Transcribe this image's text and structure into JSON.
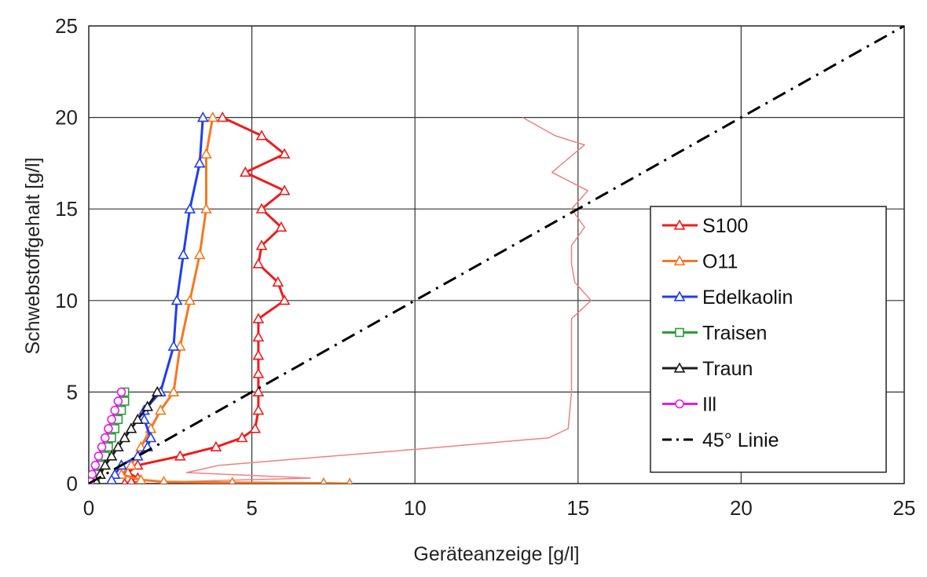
{
  "chart_data": {
    "type": "line",
    "xlabel": "Geräteanzeige [g/l]",
    "ylabel": "Schwebstoffgehalt [g/l]",
    "xlim": [
      0,
      25
    ],
    "ylim": [
      0,
      25
    ],
    "xticks": [
      "0",
      "5",
      "10",
      "15",
      "20",
      "25"
    ],
    "yticks": [
      "0",
      "5",
      "10",
      "15",
      "20",
      "25"
    ],
    "grid": true,
    "legend_position": "right",
    "series": [
      {
        "name": "S100",
        "color": "#ee1c1c",
        "marker": "triangle",
        "points": [
          [
            4.1,
            20
          ],
          [
            5.3,
            19
          ],
          [
            6.0,
            18
          ],
          [
            4.8,
            17
          ],
          [
            6.0,
            16
          ],
          [
            5.3,
            15
          ],
          [
            5.9,
            14
          ],
          [
            5.3,
            13
          ],
          [
            5.2,
            12
          ],
          [
            5.8,
            11
          ],
          [
            6.0,
            10
          ],
          [
            5.2,
            9
          ],
          [
            5.2,
            8
          ],
          [
            5.2,
            7
          ],
          [
            5.2,
            6
          ],
          [
            5.2,
            5
          ],
          [
            5.2,
            4
          ],
          [
            5.1,
            3
          ],
          [
            4.7,
            2.5
          ],
          [
            3.9,
            2
          ],
          [
            2.8,
            1.5
          ],
          [
            1.5,
            1.0
          ],
          [
            1.2,
            0.6
          ],
          [
            1.5,
            0.3
          ],
          [
            1.3,
            0.1
          ],
          [
            1.1,
            0
          ]
        ]
      },
      {
        "name": "",
        "color": "#f08080",
        "marker": "none",
        "points": [
          [
            13.3,
            20
          ],
          [
            14.3,
            19
          ],
          [
            15.2,
            18.5
          ],
          [
            14.2,
            17
          ],
          [
            15.3,
            16
          ],
          [
            14.8,
            15
          ],
          [
            15.2,
            14
          ],
          [
            14.8,
            13
          ],
          [
            14.8,
            12
          ],
          [
            14.9,
            11
          ],
          [
            15.4,
            10
          ],
          [
            14.8,
            9
          ],
          [
            14.8,
            7
          ],
          [
            14.8,
            5
          ],
          [
            14.7,
            3
          ],
          [
            14.1,
            2.5
          ],
          [
            10.2,
            1.9
          ],
          [
            4.0,
            1.0
          ],
          [
            3.0,
            0.6
          ],
          [
            6.8,
            0.3
          ],
          [
            2.5,
            0.1
          ]
        ]
      },
      {
        "name": "O11",
        "color": "#f5781e",
        "marker": "triangle",
        "points": [
          [
            3.8,
            20
          ],
          [
            3.6,
            18
          ],
          [
            3.6,
            15
          ],
          [
            3.4,
            12.5
          ],
          [
            3.1,
            10
          ],
          [
            2.8,
            7.5
          ],
          [
            2.6,
            5
          ],
          [
            2.2,
            4
          ],
          [
            1.9,
            3
          ],
          [
            1.6,
            2
          ],
          [
            1.3,
            1
          ],
          [
            1.0,
            0.5
          ],
          [
            1.6,
            0.2
          ],
          [
            2.3,
            0.1
          ],
          [
            4.4,
            0.05
          ],
          [
            7.2,
            0.02
          ],
          [
            8.0,
            0
          ]
        ]
      },
      {
        "name": "Edelkaolin",
        "color": "#1f3df0",
        "marker": "triangle",
        "points": [
          [
            3.5,
            20
          ],
          [
            3.4,
            17.5
          ],
          [
            3.1,
            15
          ],
          [
            2.9,
            12.5
          ],
          [
            2.7,
            10
          ],
          [
            2.6,
            7.5
          ],
          [
            2.2,
            5
          ],
          [
            1.7,
            4
          ],
          [
            1.7,
            3.5
          ],
          [
            1.9,
            2.5
          ],
          [
            1.8,
            2
          ],
          [
            1.5,
            1.5
          ],
          [
            1.0,
            1
          ],
          [
            0.8,
            0.5
          ],
          [
            0.7,
            0.2
          ]
        ]
      },
      {
        "name": "Traisen",
        "color": "#2a9d3a",
        "marker": "square",
        "points": [
          [
            1.1,
            5
          ],
          [
            1.1,
            4.5
          ],
          [
            1.0,
            4
          ],
          [
            0.9,
            3.5
          ],
          [
            0.8,
            3
          ],
          [
            0.7,
            2.5
          ],
          [
            0.6,
            2
          ],
          [
            0.5,
            1.5
          ],
          [
            0.4,
            1
          ],
          [
            0.3,
            0.5
          ],
          [
            0.2,
            0.1
          ]
        ]
      },
      {
        "name": "Traun",
        "color": "#1a1a1a",
        "marker": "triangle",
        "points": [
          [
            2.1,
            5
          ],
          [
            1.8,
            4.2
          ],
          [
            1.5,
            3.5
          ],
          [
            1.3,
            3
          ],
          [
            1.1,
            2.5
          ],
          [
            0.9,
            2
          ],
          [
            0.7,
            1.5
          ],
          [
            0.5,
            1
          ],
          [
            0.35,
            0.5
          ],
          [
            0.2,
            0.2
          ]
        ]
      },
      {
        "name": "Ill",
        "color": "#e31ce8",
        "marker": "circle",
        "points": [
          [
            1.0,
            5
          ],
          [
            0.9,
            4.5
          ],
          [
            0.8,
            4
          ],
          [
            0.7,
            3.5
          ],
          [
            0.6,
            3
          ],
          [
            0.5,
            2.5
          ],
          [
            0.4,
            2
          ],
          [
            0.3,
            1.5
          ],
          [
            0.2,
            1
          ],
          [
            0.1,
            0.5
          ],
          [
            0.05,
            0.1
          ]
        ]
      },
      {
        "name": "45° Linie",
        "color": "#000000",
        "marker": "none",
        "dash": "dashdot",
        "points": [
          [
            0,
            0
          ],
          [
            25,
            25
          ]
        ]
      }
    ]
  }
}
